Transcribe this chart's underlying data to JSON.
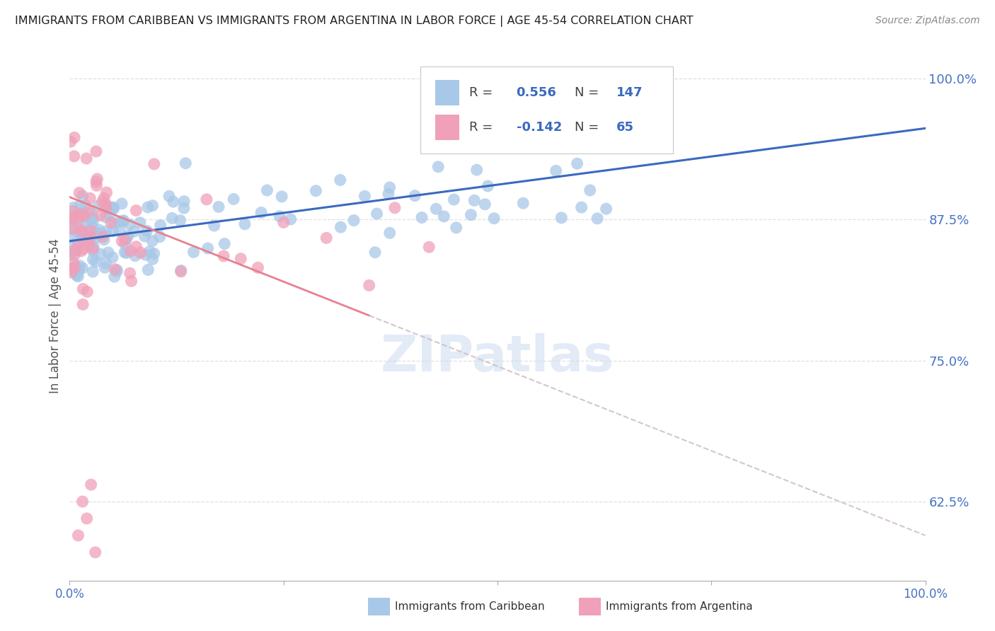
{
  "title": "IMMIGRANTS FROM CARIBBEAN VS IMMIGRANTS FROM ARGENTINA IN LABOR FORCE | AGE 45-54 CORRELATION CHART",
  "source": "Source: ZipAtlas.com",
  "ylabel": "In Labor Force | Age 45-54",
  "xmin": 0.0,
  "xmax": 1.0,
  "ymin": 0.555,
  "ymax": 1.025,
  "yticks": [
    0.625,
    0.75,
    0.875,
    1.0
  ],
  "ytick_labels": [
    "62.5%",
    "75.0%",
    "87.5%",
    "100.0%"
  ],
  "caribbean_R": 0.556,
  "caribbean_N": 147,
  "argentina_R": -0.142,
  "argentina_N": 65,
  "caribbean_color": "#a8c8e8",
  "argentina_color": "#f0a0b8",
  "caribbean_line_color": "#3a6abf",
  "argentina_line_color": "#e88090",
  "argentina_dash_color": "#d0c0c8",
  "background_color": "#ffffff",
  "grid_color": "#d8d8d8",
  "watermark_color": "#d0dff0",
  "title_color": "#222222",
  "source_color": "#888888",
  "tick_color": "#4472c4",
  "xtick_label_color": "#4472c4"
}
